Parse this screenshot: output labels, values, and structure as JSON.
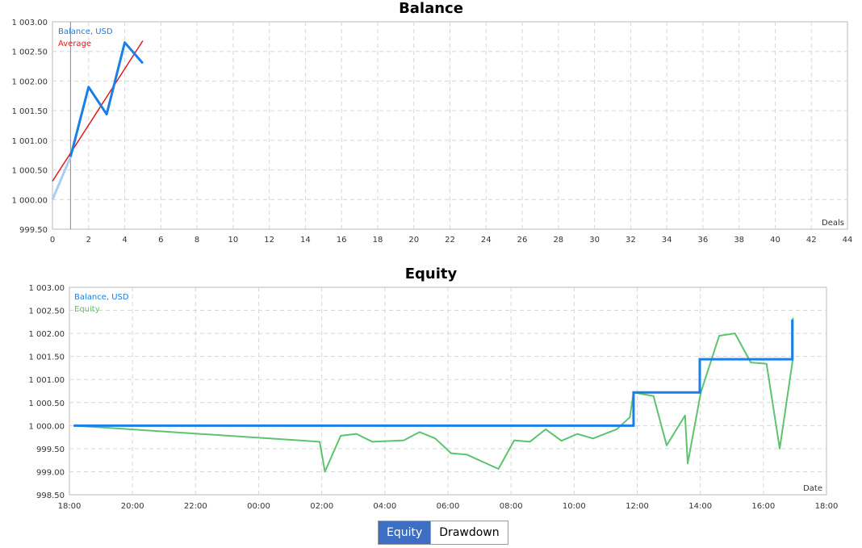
{
  "chart_data": [
    {
      "type": "line",
      "title": "Balance",
      "xlabel": "Deals",
      "ylabel": "",
      "xlim": [
        0,
        44
      ],
      "ylim": [
        999.5,
        1003.0
      ],
      "grid": true,
      "legend_position": "top-left",
      "x_ticks": [
        "0",
        "2",
        "4",
        "6",
        "8",
        "10",
        "12",
        "14",
        "16",
        "18",
        "20",
        "22",
        "24",
        "26",
        "28",
        "30",
        "32",
        "34",
        "36",
        "38",
        "40",
        "42",
        "44"
      ],
      "y_ticks": [
        "1 003.00",
        "1 002.50",
        "1 002.00",
        "1 001.50",
        "1 001.00",
        "1 000.50",
        "1 000.00",
        "999.50"
      ],
      "series": [
        {
          "name": "Balance, USD",
          "color": "#1a7fe6",
          "x": [
            0,
            1,
            2,
            3,
            4,
            5
          ],
          "y": [
            1000.0,
            1000.72,
            1001.9,
            1001.44,
            1002.65,
            1002.3
          ]
        },
        {
          "name": "Average",
          "color": "#e01b1b",
          "x": [
            0,
            5
          ],
          "y": [
            1000.31,
            1002.68
          ]
        }
      ]
    },
    {
      "type": "line",
      "title": "Equity",
      "xlabel": "Date",
      "ylabel": "",
      "ylim": [
        998.5,
        1003.0
      ],
      "grid": true,
      "legend_position": "top-left",
      "x_ticks": [
        "18:00",
        "20:00",
        "22:00",
        "00:00",
        "02:00",
        "04:00",
        "06:00",
        "08:00",
        "10:00",
        "12:00",
        "14:00",
        "16:00",
        "18:00"
      ],
      "y_ticks": [
        "1 003.00",
        "1 002.50",
        "1 002.00",
        "1 001.50",
        "1 001.00",
        "1 000.50",
        "1 000.00",
        "999.50",
        "999.00",
        "998.50"
      ],
      "series": [
        {
          "name": "Balance, USD",
          "color": "#1a7fe6",
          "x": [
            "18:08",
            "11:53",
            "11:53",
            "13:59",
            "13:59",
            "16:55",
            "16:55"
          ],
          "y": [
            1000.0,
            1000.0,
            1000.72,
            1000.72,
            1001.44,
            1001.44,
            1002.3
          ]
        },
        {
          "name": "Equity",
          "color": "#5cc46e",
          "x": [
            "18:08",
            "01:56",
            "02:06",
            "02:36",
            "03:06",
            "03:36",
            "04:36",
            "05:06",
            "05:36",
            "06:06",
            "06:36",
            "07:36",
            "08:06",
            "08:36",
            "09:06",
            "09:36",
            "10:06",
            "10:36",
            "11:21",
            "11:46",
            "11:53",
            "12:31",
            "12:56",
            "13:31",
            "13:36",
            "14:01",
            "14:36",
            "15:06",
            "15:36",
            "16:06",
            "16:31",
            "16:56",
            "16:56"
          ],
          "y": [
            1000.0,
            999.65,
            999.0,
            999.78,
            999.82,
            999.65,
            999.68,
            999.86,
            999.72,
            999.4,
            999.37,
            999.06,
            999.68,
            999.65,
            999.92,
            999.67,
            999.82,
            999.72,
            999.92,
            1000.18,
            1000.72,
            1000.64,
            999.57,
            1000.22,
            999.18,
            1000.72,
            1001.95,
            1002.0,
            1001.37,
            1001.34,
            999.5,
            1001.44,
            1002.34
          ]
        }
      ]
    }
  ],
  "tabs": {
    "equity_label": "Equity",
    "drawdown_label": "Drawdown",
    "active": "equity"
  }
}
